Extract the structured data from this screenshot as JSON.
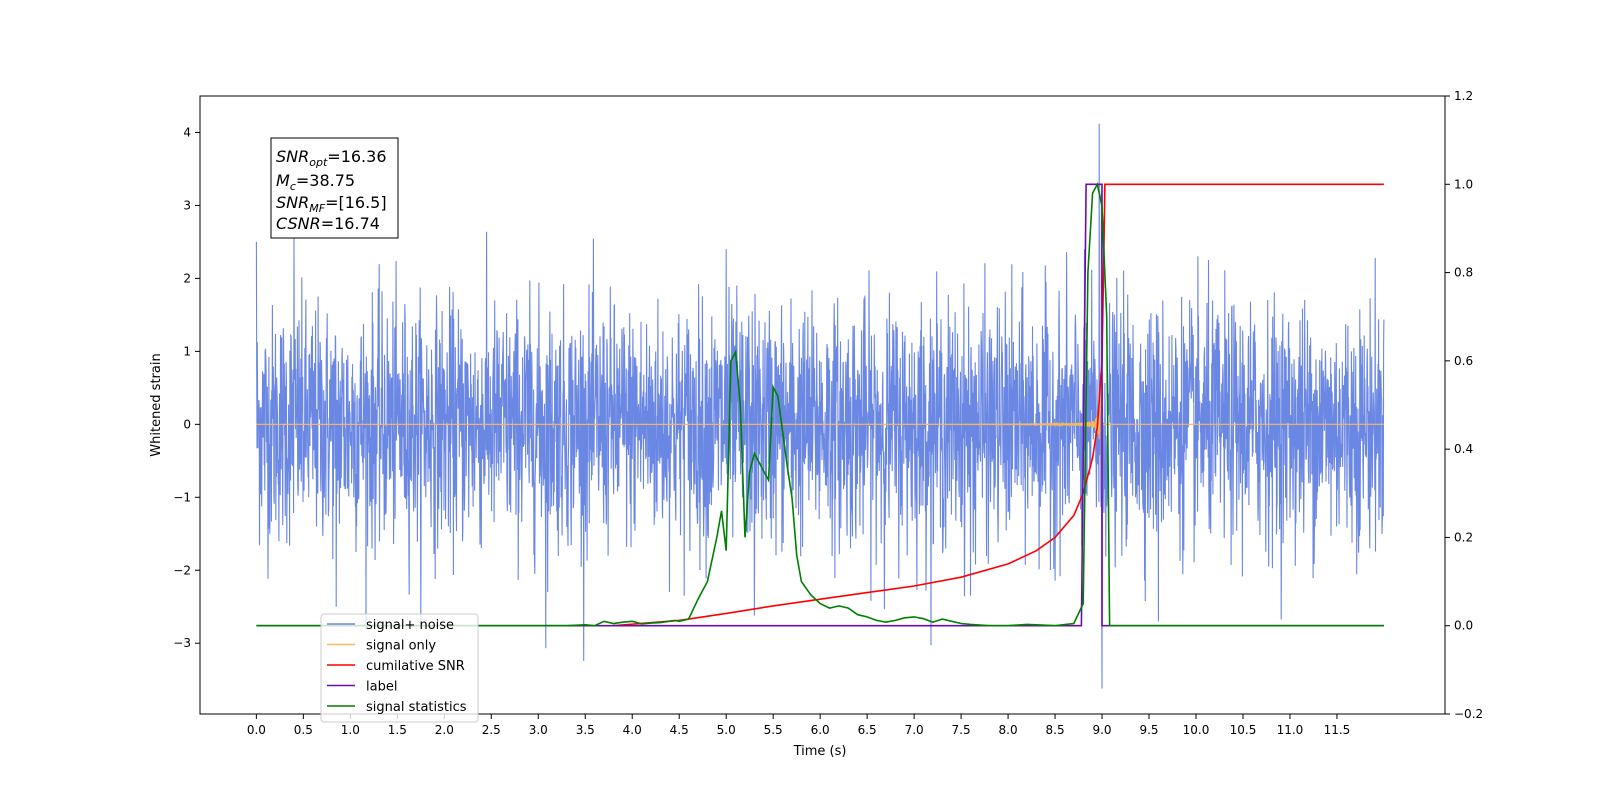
{
  "chart_data": {
    "type": "line",
    "xlabel": "Time (s)",
    "ylabel": "Whitened strain",
    "xlim": [
      -0.6,
      12.65
    ],
    "ylim": [
      -3.97,
      4.5
    ],
    "y2lim": [
      -0.2,
      1.2
    ],
    "x_ticks": [
      0.0,
      0.5,
      1.0,
      1.5,
      2.0,
      2.5,
      3.0,
      3.5,
      4.0,
      4.5,
      5.0,
      5.5,
      6.0,
      6.5,
      7.0,
      7.5,
      8.0,
      8.5,
      9.0,
      9.5,
      10.0,
      10.5,
      11.0,
      11.5
    ],
    "x_tick_labels": [
      "0.0",
      "0.5",
      "1.0",
      "1.5",
      "2.0",
      "2.5",
      "3.0",
      "3.5",
      "4.0",
      "4.5",
      "5.0",
      "5.5",
      "6.0",
      "6.5",
      "7.0",
      "7.5",
      "8.0",
      "8.5",
      "9.0",
      "9.5",
      "10.0",
      "10.5",
      "11.0",
      "11.5"
    ],
    "y_ticks": [
      4,
      3,
      2,
      1,
      0,
      -1,
      -2,
      -3
    ],
    "y_tick_labels": [
      "4",
      "3",
      "2",
      "1",
      "0",
      "−1",
      "−2",
      "−3"
    ],
    "y2_ticks": [
      1.2,
      1.0,
      0.8,
      0.6,
      0.4,
      0.2,
      0.0,
      -0.2
    ],
    "y2_tick_labels": [
      "1.2",
      "1.0",
      "0.8",
      "0.6",
      "0.4",
      "0.2",
      "0.0",
      "−0.2"
    ],
    "annotation": {
      "snr_opt": {
        "base": "SNR",
        "sub": "opt",
        "value": "=16.36"
      },
      "mc": {
        "base": "M",
        "sub": "c",
        "value": "=38.75"
      },
      "snr_mf": {
        "base": "SNR",
        "sub": "MF",
        "value": "=[16.5]"
      },
      "csnr": {
        "base": "CSNR",
        "value": "=16.74"
      }
    },
    "legend_position": "lower-left",
    "series": [
      {
        "name": "signal+ noise",
        "color": "#6a87e3",
        "axis": "left",
        "kind": "noisy-strain",
        "x_range": [
          0.0,
          12.0
        ],
        "typical_amplitude": 1.3,
        "extremes": [
          [
            0.0,
            2.5
          ],
          [
            0.4,
            2.6
          ],
          [
            0.85,
            -2.5
          ],
          [
            3.08,
            -3.07
          ],
          [
            5.0,
            2.4
          ],
          [
            5.3,
            -2.62
          ],
          [
            7.6,
            -2.35
          ],
          [
            8.97,
            4.12
          ],
          [
            9.0,
            -3.62
          ],
          [
            9.6,
            -2.7
          ]
        ]
      },
      {
        "name": "signal only",
        "color": "#f5b95e",
        "axis": "left",
        "kind": "chirp",
        "x_range": [
          0.0,
          12.0
        ],
        "merger": 9.0,
        "peak_amplitude": 3.7
      },
      {
        "name": "cumilative SNR",
        "color": "#ff0000",
        "axis": "right",
        "points": [
          [
            3.8,
            0.0
          ],
          [
            4.5,
            0.012
          ],
          [
            5.0,
            0.028
          ],
          [
            5.5,
            0.045
          ],
          [
            6.0,
            0.06
          ],
          [
            6.5,
            0.075
          ],
          [
            7.0,
            0.09
          ],
          [
            7.5,
            0.11
          ],
          [
            8.0,
            0.14
          ],
          [
            8.3,
            0.17
          ],
          [
            8.5,
            0.2
          ],
          [
            8.7,
            0.25
          ],
          [
            8.8,
            0.3
          ],
          [
            8.9,
            0.38
          ],
          [
            8.95,
            0.45
          ],
          [
            9.0,
            0.6
          ],
          [
            9.02,
            0.85
          ],
          [
            9.03,
            1.0
          ],
          [
            11.5,
            1.0
          ],
          [
            12.0,
            1.0
          ]
        ]
      },
      {
        "name": "label",
        "color": "#6a0dad",
        "axis": "right",
        "points": [
          [
            0.0,
            0.0
          ],
          [
            8.78,
            0.0
          ],
          [
            8.83,
            1.0
          ],
          [
            9.0,
            1.0
          ],
          [
            9.0,
            0.0
          ],
          [
            12.0,
            0.0
          ]
        ]
      },
      {
        "name": "signal statistics",
        "color": "#007f00",
        "axis": "right",
        "points": [
          [
            0.0,
            0.0
          ],
          [
            3.3,
            0.0
          ],
          [
            3.5,
            0.002
          ],
          [
            3.6,
            0.0
          ],
          [
            3.7,
            0.01
          ],
          [
            3.8,
            0.005
          ],
          [
            3.9,
            0.008
          ],
          [
            4.0,
            0.01
          ],
          [
            4.1,
            0.004
          ],
          [
            4.2,
            0.006
          ],
          [
            4.3,
            0.007
          ],
          [
            4.45,
            0.012
          ],
          [
            4.5,
            0.01
          ],
          [
            4.6,
            0.015
          ],
          [
            4.7,
            0.06
          ],
          [
            4.8,
            0.1
          ],
          [
            4.9,
            0.2
          ],
          [
            4.95,
            0.26
          ],
          [
            5.0,
            0.17
          ],
          [
            5.05,
            0.6
          ],
          [
            5.1,
            0.62
          ],
          [
            5.15,
            0.5
          ],
          [
            5.2,
            0.2
          ],
          [
            5.25,
            0.35
          ],
          [
            5.3,
            0.39
          ],
          [
            5.4,
            0.35
          ],
          [
            5.45,
            0.33
          ],
          [
            5.5,
            0.54
          ],
          [
            5.55,
            0.52
          ],
          [
            5.6,
            0.44
          ],
          [
            5.65,
            0.36
          ],
          [
            5.7,
            0.29
          ],
          [
            5.75,
            0.16
          ],
          [
            5.8,
            0.1
          ],
          [
            5.9,
            0.07
          ],
          [
            6.0,
            0.05
          ],
          [
            6.1,
            0.04
          ],
          [
            6.2,
            0.045
          ],
          [
            6.3,
            0.04
          ],
          [
            6.4,
            0.025
          ],
          [
            6.5,
            0.02
          ],
          [
            6.6,
            0.012
          ],
          [
            6.7,
            0.008
          ],
          [
            6.8,
            0.012
          ],
          [
            6.9,
            0.018
          ],
          [
            7.0,
            0.02
          ],
          [
            7.1,
            0.016
          ],
          [
            7.2,
            0.008
          ],
          [
            7.3,
            0.015
          ],
          [
            7.4,
            0.01
          ],
          [
            7.5,
            0.005
          ],
          [
            7.6,
            0.003
          ],
          [
            7.8,
            0.0
          ],
          [
            8.0,
            0.0
          ],
          [
            8.2,
            0.003
          ],
          [
            8.3,
            0.002
          ],
          [
            8.5,
            0.0
          ],
          [
            8.7,
            0.005
          ],
          [
            8.8,
            0.05
          ],
          [
            8.85,
            0.8
          ],
          [
            8.9,
            0.98
          ],
          [
            8.95,
            1.0
          ],
          [
            9.0,
            0.95
          ],
          [
            9.05,
            0.7
          ],
          [
            9.08,
            0.0
          ],
          [
            12.0,
            0.0
          ]
        ]
      }
    ]
  }
}
